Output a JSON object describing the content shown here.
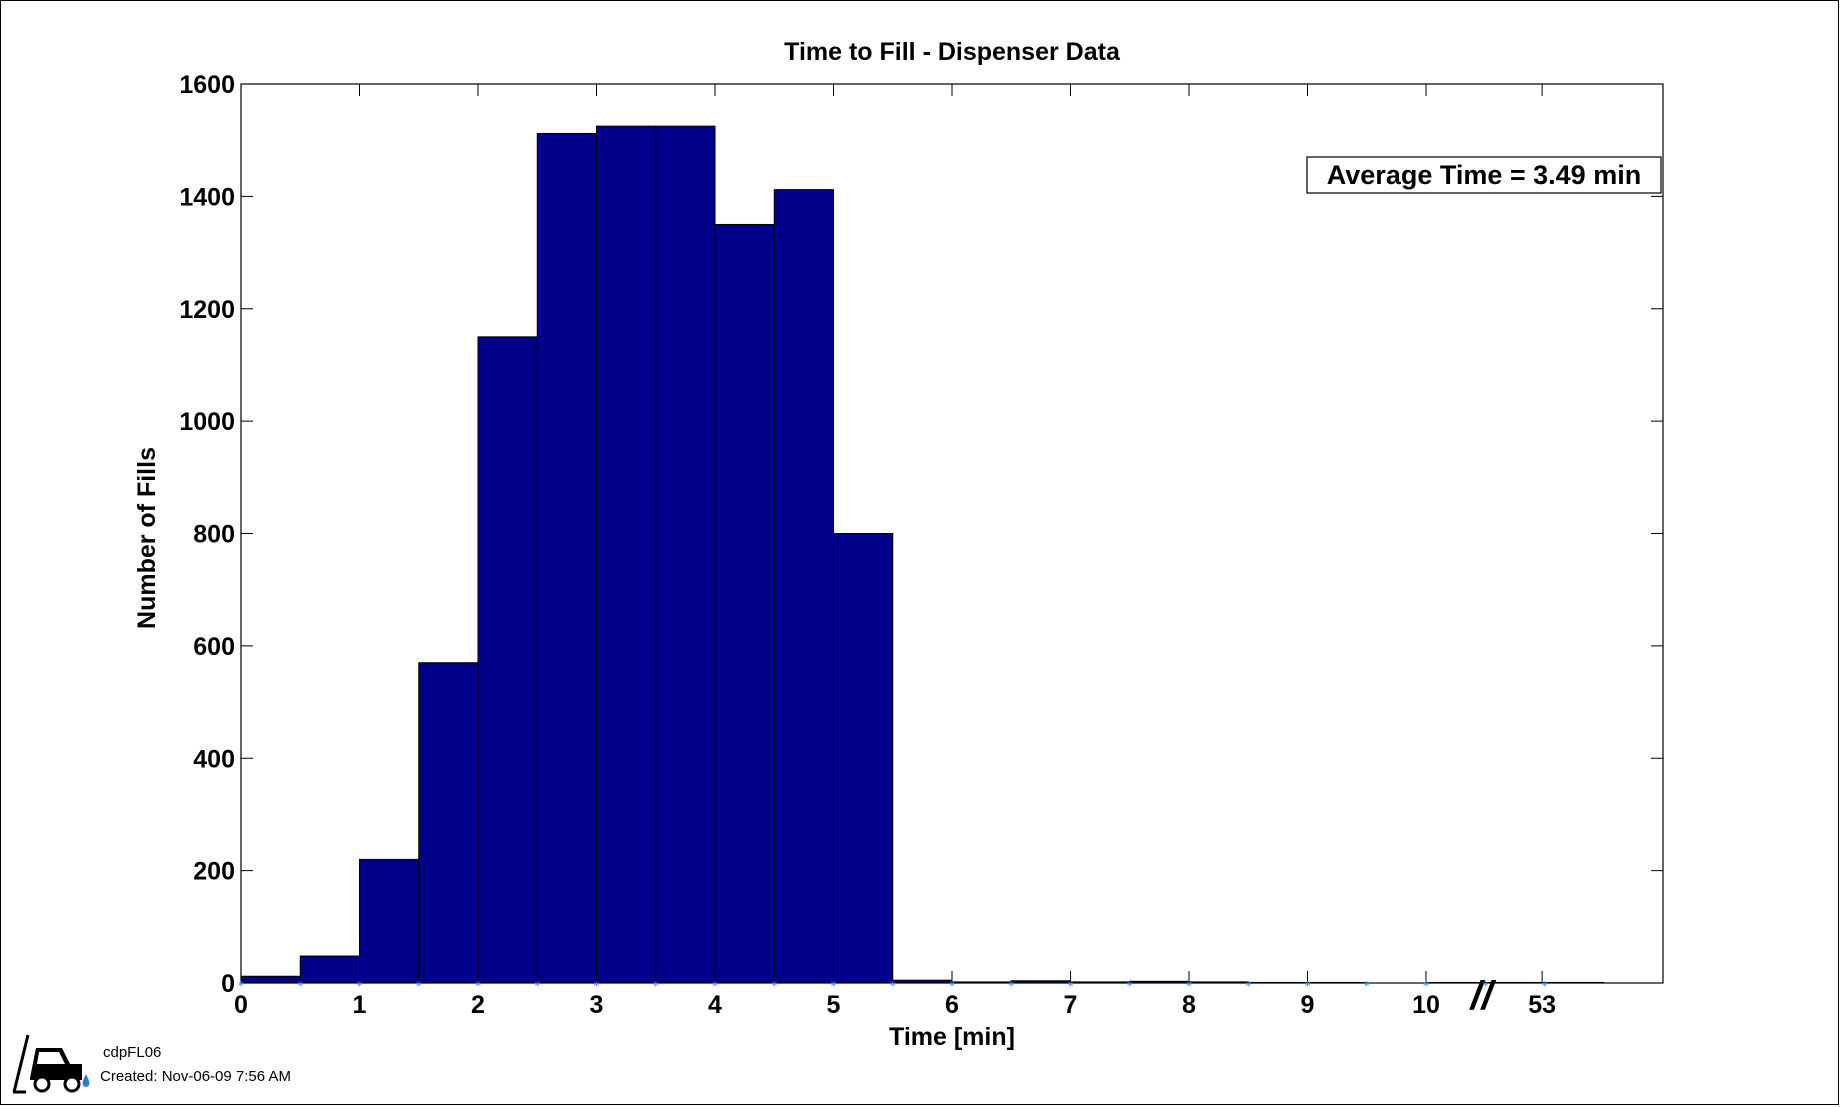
{
  "chart_data": {
    "type": "bar",
    "title": "Time to Fill - Dispenser Data",
    "xlabel": "Time [min]",
    "ylabel": "Number of Fills",
    "ylim": [
      0,
      1600
    ],
    "yticks": [
      0,
      200,
      400,
      600,
      800,
      1000,
      1200,
      1400,
      1600
    ],
    "xtick_labels": [
      "0",
      "1",
      "2",
      "3",
      "4",
      "5",
      "6",
      "7",
      "8",
      "9",
      "10",
      "53"
    ],
    "axis_break_symbol": "//",
    "bin_width": 0.5,
    "bins": [
      {
        "start": 0,
        "value": 12
      },
      {
        "start": 0.5,
        "value": 48
      },
      {
        "start": 1,
        "value": 220
      },
      {
        "start": 1.5,
        "value": 570
      },
      {
        "start": 2,
        "value": 1150
      },
      {
        "start": 2.5,
        "value": 1512
      },
      {
        "start": 3,
        "value": 1525
      },
      {
        "start": 3.5,
        "value": 1525
      },
      {
        "start": 4,
        "value": 1350
      },
      {
        "start": 4.5,
        "value": 1412
      },
      {
        "start": 5,
        "value": 800
      },
      {
        "start": 5.5,
        "value": 5
      },
      {
        "start": 6,
        "value": 2
      },
      {
        "start": 6.5,
        "value": 4
      },
      {
        "start": 7,
        "value": 2
      },
      {
        "start": 7.5,
        "value": 3
      },
      {
        "start": 8,
        "value": 2
      },
      {
        "start": 8.5,
        "value": 1
      },
      {
        "start": 9,
        "value": 1
      },
      {
        "start": 9.5,
        "value": 0
      },
      {
        "start": 10,
        "value": 1
      },
      {
        "start": 10.5,
        "value": 1
      },
      {
        "start": 11,
        "value": 1
      }
    ],
    "annotation": "Average Time = 3.49 min",
    "colors": {
      "bar": "#00008B",
      "marker": "#3F7FFF",
      "axis": "#000000"
    },
    "grid": false
  },
  "footer": {
    "id_label": "cdpFL06",
    "created_label": "Created: Nov-06-09  7:56 AM"
  },
  "icons": {
    "logo": "forklift-fuel-icon"
  }
}
